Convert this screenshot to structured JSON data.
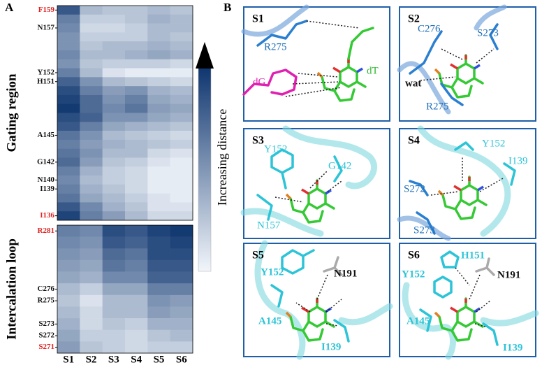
{
  "figure": {
    "panel_letters": [
      "A",
      "B"
    ],
    "heatmap": {
      "type": "heatmap",
      "columns": [
        "S1",
        "S2",
        "S3",
        "S4",
        "S5",
        "S6"
      ],
      "clim": [
        0,
        1
      ],
      "colormap": [
        "#f2f6fb",
        "#08306b"
      ],
      "colorbar_label": "Increasing distance",
      "groups": [
        {
          "title": "Gating region",
          "row_labels": [
            {
              "text": "F159",
              "color": "#e02020"
            },
            null,
            {
              "text": "N157",
              "color": "#111111"
            },
            null,
            null,
            null,
            null,
            {
              "text": "Y152",
              "color": "#111111"
            },
            {
              "text": "H151",
              "color": "#111111"
            },
            null,
            null,
            null,
            null,
            null,
            {
              "text": "A145",
              "color": "#111111"
            },
            null,
            null,
            {
              "text": "G142",
              "color": "#111111"
            },
            null,
            {
              "text": "N140",
              "color": "#111111"
            },
            {
              "text": "I139",
              "color": "#111111"
            },
            null,
            null,
            {
              "text": "I136",
              "color": "#e02020"
            }
          ],
          "values": [
            [
              0.8,
              0.3,
              0.25,
              0.25,
              0.3,
              0.25
            ],
            [
              0.6,
              0.2,
              0.2,
              0.25,
              0.35,
              0.3
            ],
            [
              0.55,
              0.15,
              0.15,
              0.2,
              0.3,
              0.3
            ],
            [
              0.5,
              0.2,
              0.2,
              0.2,
              0.3,
              0.25
            ],
            [
              0.5,
              0.25,
              0.3,
              0.3,
              0.35,
              0.3
            ],
            [
              0.55,
              0.3,
              0.3,
              0.35,
              0.4,
              0.35
            ],
            [
              0.5,
              0.25,
              0.2,
              0.2,
              0.2,
              0.15
            ],
            [
              0.6,
              0.3,
              0.1,
              0.05,
              0.05,
              0.05
            ],
            [
              0.75,
              0.5,
              0.3,
              0.25,
              0.2,
              0.15
            ],
            [
              0.85,
              0.6,
              0.45,
              0.5,
              0.35,
              0.3
            ],
            [
              0.9,
              0.7,
              0.5,
              0.6,
              0.4,
              0.35
            ],
            [
              0.95,
              0.7,
              0.55,
              0.65,
              0.45,
              0.4
            ],
            [
              0.85,
              0.75,
              0.5,
              0.5,
              0.4,
              0.35
            ],
            [
              0.8,
              0.6,
              0.4,
              0.35,
              0.3,
              0.25
            ],
            [
              0.65,
              0.5,
              0.3,
              0.25,
              0.2,
              0.15
            ],
            [
              0.6,
              0.45,
              0.35,
              0.3,
              0.25,
              0.2
            ],
            [
              0.65,
              0.5,
              0.3,
              0.3,
              0.15,
              0.1
            ],
            [
              0.7,
              0.45,
              0.25,
              0.2,
              0.1,
              0.05
            ],
            [
              0.6,
              0.35,
              0.2,
              0.15,
              0.05,
              0.05
            ],
            [
              0.55,
              0.3,
              0.2,
              0.15,
              0.05,
              0.05
            ],
            [
              0.6,
              0.35,
              0.25,
              0.15,
              0.05,
              0.05
            ],
            [
              0.65,
              0.4,
              0.3,
              0.2,
              0.1,
              0.05
            ],
            [
              0.8,
              0.55,
              0.35,
              0.25,
              0.1,
              0.1
            ],
            [
              0.9,
              0.6,
              0.45,
              0.3,
              0.15,
              0.15
            ]
          ]
        },
        {
          "title": "Intercalation loop",
          "row_labels": [
            {
              "text": "R281",
              "color": "#e02020"
            },
            null,
            null,
            null,
            null,
            {
              "text": "C276",
              "color": "#111111"
            },
            {
              "text": "R275",
              "color": "#111111"
            },
            null,
            {
              "text": "S273",
              "color": "#111111"
            },
            {
              "text": "S272",
              "color": "#111111"
            },
            {
              "text": "S271",
              "color": "#e02020"
            }
          ],
          "values": [
            [
              0.6,
              0.55,
              0.85,
              0.8,
              0.9,
              0.95
            ],
            [
              0.55,
              0.5,
              0.8,
              0.75,
              0.85,
              0.9
            ],
            [
              0.5,
              0.45,
              0.7,
              0.65,
              0.85,
              0.85
            ],
            [
              0.45,
              0.4,
              0.65,
              0.6,
              0.8,
              0.8
            ],
            [
              0.4,
              0.35,
              0.55,
              0.55,
              0.75,
              0.75
            ],
            [
              0.3,
              0.2,
              0.4,
              0.4,
              0.6,
              0.6
            ],
            [
              0.25,
              0.1,
              0.3,
              0.3,
              0.5,
              0.45
            ],
            [
              0.3,
              0.15,
              0.3,
              0.3,
              0.45,
              0.4
            ],
            [
              0.35,
              0.15,
              0.25,
              0.2,
              0.35,
              0.35
            ],
            [
              0.4,
              0.2,
              0.2,
              0.15,
              0.25,
              0.3
            ],
            [
              0.45,
              0.25,
              0.2,
              0.15,
              0.2,
              0.2
            ]
          ]
        }
      ]
    },
    "panels": [
      {
        "name": "S1",
        "labels": [
          {
            "text": "R275",
            "color": "#1f6fb8"
          },
          {
            "text": "dG",
            "color": "#e020b0"
          },
          {
            "text": "dT",
            "color": "#2db82d"
          }
        ]
      },
      {
        "name": "S2",
        "labels": [
          {
            "text": "C276",
            "color": "#1f6fb8"
          },
          {
            "text": "S273",
            "color": "#1f6fb8"
          },
          {
            "text": "wat",
            "color": "#111111"
          },
          {
            "text": "R275",
            "color": "#1f6fb8"
          }
        ]
      },
      {
        "name": "S3",
        "labels": [
          {
            "text": "Y152",
            "color": "#2cc4d6"
          },
          {
            "text": "G142",
            "color": "#2cc4d6"
          },
          {
            "text": "N157",
            "color": "#2cc4d6"
          }
        ]
      },
      {
        "name": "S4",
        "labels": [
          {
            "text": "Y152",
            "color": "#2cc4d6"
          },
          {
            "text": "I139",
            "color": "#2cc4d6"
          },
          {
            "text": "S272",
            "color": "#1f6fb8"
          },
          {
            "text": "S273",
            "color": "#1f6fb8"
          }
        ]
      },
      {
        "name": "S5",
        "labels": [
          {
            "text": "Y152",
            "color": "#2cc4d6"
          },
          {
            "text": "N191",
            "color": "#111111"
          },
          {
            "text": "A145",
            "color": "#2cc4d6"
          },
          {
            "text": "I139",
            "color": "#2cc4d6"
          }
        ]
      },
      {
        "name": "S6",
        "labels": [
          {
            "text": "H151",
            "color": "#2cc4d6"
          },
          {
            "text": "Y152",
            "color": "#2cc4d6"
          },
          {
            "text": "N191",
            "color": "#111111"
          },
          {
            "text": "A145",
            "color": "#2cc4d6"
          },
          {
            "text": "I139",
            "color": "#2cc4d6"
          }
        ]
      }
    ]
  }
}
